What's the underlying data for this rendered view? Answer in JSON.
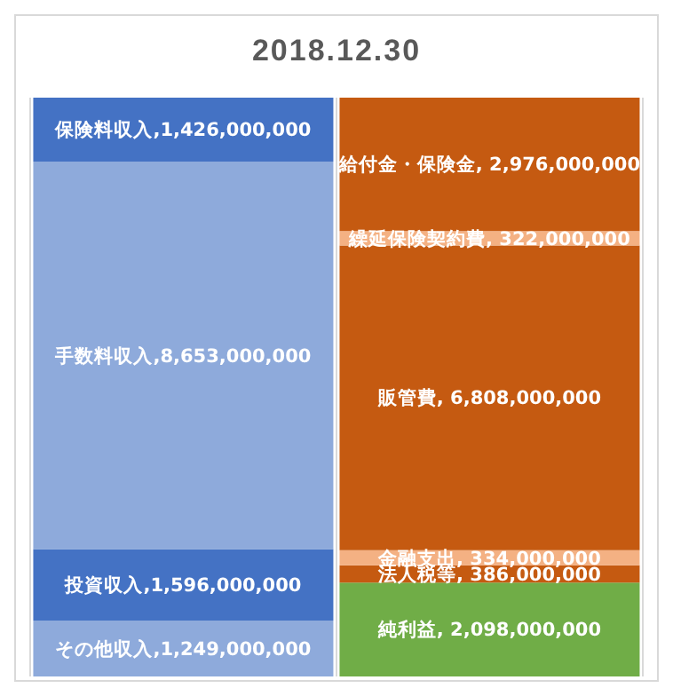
{
  "chart_data": {
    "type": "bar",
    "title": "2018.12.30",
    "categories": [
      null,
      null
    ],
    "stacked": true,
    "grid": "x",
    "series": [
      {
        "color": "#8eaadb",
        "values": [
          1249000000,
          null
        ],
        "value_labels": [
          "その他収入,1,249,000,000",
          null
        ]
      },
      {
        "color": "#4472c4",
        "values": [
          1596000000,
          null
        ],
        "value_labels": [
          "投資収入,1,596,000,000",
          null
        ]
      },
      {
        "color": "#8eaadb",
        "values": [
          8653000000,
          null
        ],
        "value_labels": [
          "手数料収入,8,653,000,000",
          null
        ]
      },
      {
        "color": "#4472c4",
        "values": [
          1426000000,
          null
        ],
        "value_labels": [
          "保険料収入,1,426,000,000",
          null
        ]
      },
      {
        "color": "#70ad47",
        "values": [
          null,
          2098000000
        ],
        "value_labels": [
          null,
          "純利益, 2,098,000,000"
        ]
      },
      {
        "color": "#c55a11",
        "values": [
          null,
          386000000
        ],
        "value_labels": [
          null,
          "法人税等, 386,000,000"
        ]
      },
      {
        "color": "#f4b183",
        "values": [
          null,
          334000000
        ],
        "value_labels": [
          null,
          "金融支出, 334,000,000"
        ]
      },
      {
        "color": "#c55a11",
        "values": [
          null,
          6808000000
        ],
        "value_labels": [
          null,
          "販管費, 6,808,000,000"
        ]
      },
      {
        "color": "#f4b183",
        "values": [
          null,
          322000000
        ],
        "value_labels": [
          null,
          "繰延保険契約費, 322,000,000"
        ]
      },
      {
        "color": "#c55a11",
        "values": [
          null,
          2976000000
        ],
        "value_labels": [
          null,
          "給付金・保険金, 2,976,000,000"
        ]
      }
    ]
  }
}
